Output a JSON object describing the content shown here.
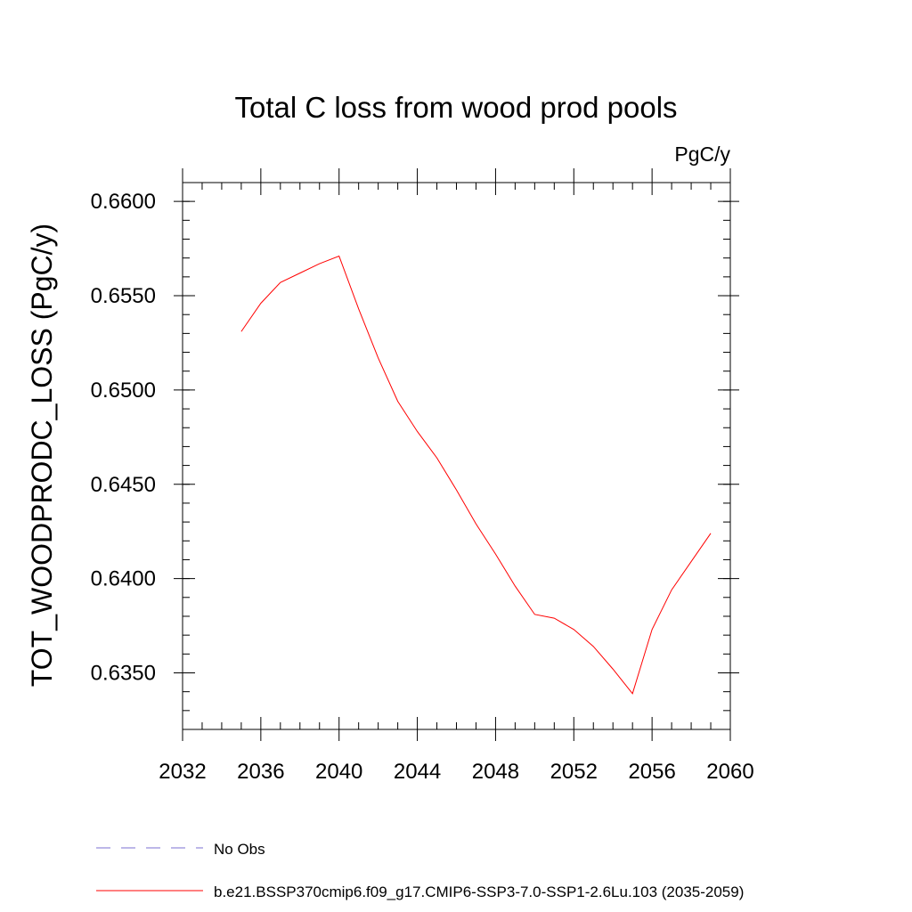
{
  "chart_data": {
    "type": "line",
    "title": "Total C loss from wood prod pools",
    "units": "PgC/y",
    "ylabel": "TOT_WOODPRODC_LOSS  (PgC/y)",
    "xlabel": "",
    "xlim": [
      2032,
      2060
    ],
    "ylim": [
      0.632,
      0.661
    ],
    "xticks": [
      2032,
      2036,
      2040,
      2044,
      2048,
      2052,
      2056,
      2060
    ],
    "xtick_labels": [
      "2032",
      "2036",
      "2040",
      "2044",
      "2048",
      "2052",
      "2056",
      "2060"
    ],
    "yticks": [
      0.635,
      0.64,
      0.645,
      0.65,
      0.655,
      0.66
    ],
    "ytick_labels": [
      "0.6350",
      "0.6400",
      "0.6450",
      "0.6500",
      "0.6550",
      "0.6600"
    ],
    "grid": false,
    "legend_position": "bottom",
    "series": [
      {
        "name": "b.e21.BSSP370cmip6.f09_g17.CMIP6-SSP3-7.0-SSP1-2.6Lu.103 (2035-2059)",
        "color": "#ff0000",
        "x": [
          2035,
          2036,
          2037,
          2038,
          2039,
          2040,
          2041,
          2042,
          2043,
          2044,
          2045,
          2046,
          2047,
          2048,
          2049,
          2050,
          2051,
          2052,
          2053,
          2054,
          2055,
          2056,
          2057,
          2058,
          2059
        ],
        "y": [
          0.6531,
          0.6546,
          0.6557,
          0.6562,
          0.6567,
          0.6571,
          0.6543,
          0.6517,
          0.6494,
          0.6478,
          0.6464,
          0.6447,
          0.6429,
          0.6413,
          0.6396,
          0.6381,
          0.6379,
          0.6373,
          0.6364,
          0.6352,
          0.6339,
          0.6373,
          0.6394,
          0.6409,
          0.6424
        ]
      }
    ],
    "legend": [
      {
        "label": "No Obs",
        "color": "#7b6fd0",
        "dash": "dashed"
      },
      {
        "label": "b.e21.BSSP370cmip6.f09_g17.CMIP6-SSP3-7.0-SSP1-2.6Lu.103 (2035-2059)",
        "color": "#ff0000",
        "dash": "solid"
      }
    ]
  }
}
